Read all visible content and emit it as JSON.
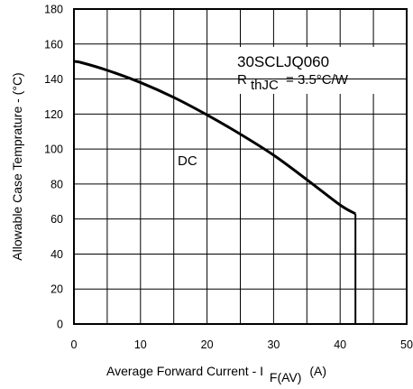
{
  "chart_data": {
    "type": "line",
    "title": "",
    "xlabel": "Average Forward Current - I",
    "xlabel_subscript": "F(AV)",
    "xlabel_unit": "(A)",
    "ylabel": "Allowable Case Temprature - (°C)",
    "xlim": [
      0,
      50
    ],
    "ylim": [
      0,
      180
    ],
    "x_ticks": [
      0,
      10,
      20,
      30,
      40,
      50
    ],
    "y_ticks": [
      0,
      20,
      40,
      60,
      80,
      100,
      120,
      140,
      160,
      180
    ],
    "x_tick_labels": [
      "0",
      "10",
      "20",
      "30",
      "40",
      "50"
    ],
    "y_tick_labels": [
      "0",
      "20",
      "40",
      "60",
      "80",
      "100",
      "120",
      "140",
      "160",
      "180"
    ],
    "x_gridlines": [
      5,
      10,
      15,
      20,
      25,
      30,
      35,
      40,
      45
    ],
    "y_gridlines": [
      20,
      40,
      60,
      80,
      100,
      120,
      140,
      160
    ],
    "grid": true,
    "series": [
      {
        "name": "DC",
        "color": "#000000",
        "x": [
          0,
          1,
          5,
          10,
          15,
          20,
          25,
          30,
          35,
          40,
          42.3
        ],
        "y": [
          150,
          149.5,
          145,
          138,
          129.5,
          119.5,
          108.5,
          96.5,
          82.5,
          68,
          63
        ],
        "drop_to_zero_at": 42.3
      }
    ],
    "annotations": {
      "part_number": "30SCLJQ060",
      "rth_symbol": "R",
      "rth_subscript": "thJC",
      "rth_value": "= 3.5°C/W",
      "series_label": "DC"
    }
  }
}
